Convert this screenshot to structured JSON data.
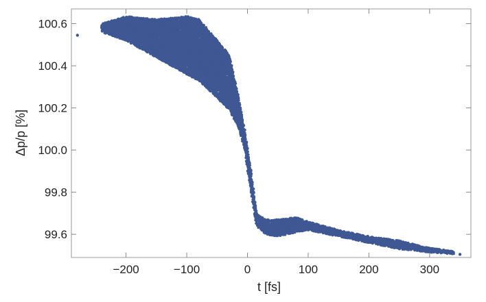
{
  "chart_data": {
    "type": "scatter",
    "xlabel": "t [fs]",
    "ylabel": "Δp/p [%]",
    "xlim": [
      -290,
      368
    ],
    "ylim": [
      99.49,
      100.67
    ],
    "x_ticks": [
      -200,
      -100,
      0,
      100,
      200,
      300
    ],
    "x_tick_labels": [
      "−200",
      "−100",
      "0",
      "100",
      "200",
      "300"
    ],
    "y_ticks": [
      99.6,
      99.8,
      100.0,
      100.2,
      100.4,
      100.6
    ],
    "y_tick_labels": [
      "99.6",
      "99.8",
      "100.0",
      "100.2",
      "100.4",
      "100.6"
    ],
    "grid": false,
    "frame": true,
    "marker_color": "#3f5894",
    "series": [
      {
        "envelope": {
          "x": [
            -240,
            -200,
            -150,
            -100,
            -80,
            -50,
            -30,
            -15,
            -5,
            5,
            15,
            30,
            50,
            80,
            100,
            150,
            200,
            250,
            300,
            340
          ],
          "upper": [
            100.6,
            100.635,
            100.62,
            100.635,
            100.62,
            100.52,
            100.45,
            100.25,
            100.1,
            99.92,
            99.7,
            99.67,
            99.67,
            99.68,
            99.66,
            99.62,
            99.59,
            99.57,
            99.535,
            99.52
          ],
          "lower": [
            100.56,
            100.52,
            100.44,
            100.36,
            100.33,
            100.25,
            100.19,
            100.11,
            100.01,
            99.82,
            99.64,
            99.6,
            99.59,
            99.61,
            99.62,
            99.59,
            99.56,
            99.53,
            99.515,
            99.505
          ]
        },
        "points": [
          [
            -280,
            100.545
          ],
          [
            -240,
            100.58
          ],
          [
            -228,
            100.575
          ],
          [
            -218,
            100.6
          ],
          [
            350,
            99.505
          ],
          [
            335,
            99.51
          ],
          [
            320,
            99.515
          ]
        ]
      }
    ]
  }
}
